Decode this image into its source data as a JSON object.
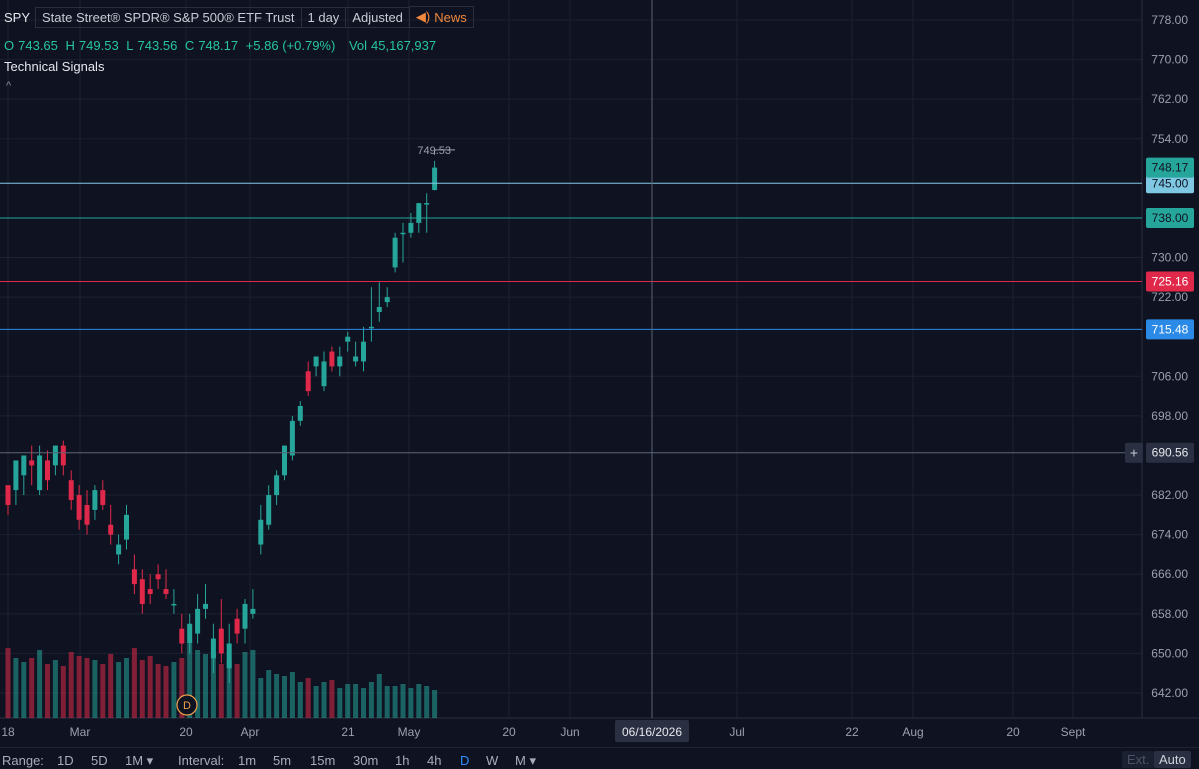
{
  "header": {
    "symbol": "SPY",
    "name": "State Street® SPDR® S&P 500® ETF Trust",
    "interval": "1 day",
    "adjusted": "Adjusted",
    "news": "News"
  },
  "ohlc": {
    "o_label": "O",
    "o": "743.65",
    "h_label": "H",
    "h": "749.53",
    "l_label": "L",
    "l": "743.56",
    "c_label": "C",
    "c": "748.17",
    "change": "+5.86 (+0.79%)",
    "vol_label": "Vol",
    "vol": "45,167,937"
  },
  "signals_label": "Technical Signals",
  "collapse_glyph": "^",
  "colors": {
    "up": "#26a69a",
    "down": "#e0294a",
    "price_line_lightblue": "#7ec8e3",
    "price_line_teal": "#26a69a",
    "price_line_red": "#e0294a",
    "price_line_blue": "#2b8ae6",
    "background": "#0f1220"
  },
  "chart_data": {
    "type": "candlestick",
    "y_range": [
      638,
      782
    ],
    "y_ticks": [
      "778.00",
      "770.00",
      "762.00",
      "754.00",
      "745.00",
      "738.00",
      "730.00",
      "722.00",
      "715.48",
      "706.00",
      "698.00",
      "690.56",
      "682.00",
      "674.00",
      "666.00",
      "658.00",
      "650.00",
      "642.00"
    ],
    "x_labels": [
      "18",
      "Mar",
      "20",
      "Apr",
      "21",
      "May",
      "20",
      "Jun",
      "06/16/2026",
      "Jul",
      "22",
      "Aug",
      "20",
      "Sept"
    ],
    "candles": [
      [
        684,
        680,
        682,
        678
      ],
      [
        683,
        689,
        686,
        680
      ],
      [
        686,
        690,
        690,
        682
      ],
      [
        689,
        688,
        692,
        684
      ],
      [
        683,
        690,
        692,
        682
      ],
      [
        689,
        685,
        691,
        683
      ],
      [
        688,
        692,
        692,
        686
      ],
      [
        692,
        688,
        693,
        686
      ],
      [
        685,
        681,
        687,
        679
      ],
      [
        682,
        677,
        684,
        675
      ],
      [
        680,
        676,
        683,
        674
      ],
      [
        679,
        683,
        684,
        677
      ],
      [
        683,
        680,
        685,
        679
      ],
      [
        676,
        674,
        680,
        672
      ],
      [
        670,
        672,
        674,
        668
      ],
      [
        673,
        678,
        680,
        671
      ],
      [
        667,
        664,
        670,
        662
      ],
      [
        665,
        660,
        667,
        658
      ],
      [
        663,
        662,
        666,
        660
      ],
      [
        666,
        665,
        668,
        663
      ],
      [
        663,
        662,
        667,
        661
      ],
      [
        660,
        660,
        663,
        658
      ],
      [
        655,
        652,
        658,
        650
      ],
      [
        652,
        656,
        658,
        650
      ],
      [
        654,
        659,
        662,
        652
      ],
      [
        659,
        660,
        664,
        657
      ],
      [
        649,
        653,
        656,
        646
      ],
      [
        655,
        650,
        661,
        648
      ],
      [
        647,
        652,
        656,
        644
      ],
      [
        657,
        654,
        659,
        652
      ],
      [
        655,
        660,
        661,
        652
      ],
      [
        658,
        659,
        663,
        657
      ],
      [
        672,
        677,
        680,
        670
      ],
      [
        676,
        682,
        684,
        675
      ],
      [
        682,
        686,
        687,
        680
      ],
      [
        686,
        692,
        692,
        685
      ],
      [
        690,
        697,
        698,
        689
      ],
      [
        697,
        700,
        701,
        696
      ],
      [
        707,
        703,
        709,
        702
      ],
      [
        708,
        710,
        710,
        706
      ],
      [
        704,
        709,
        711,
        703
      ],
      [
        711,
        708,
        712,
        707
      ],
      [
        708,
        710,
        712,
        706
      ],
      [
        713,
        714,
        715,
        711
      ],
      [
        709,
        710,
        713,
        708
      ],
      [
        709,
        713,
        716,
        707
      ],
      [
        716,
        716,
        724,
        713
      ],
      [
        719,
        720,
        725,
        717
      ],
      [
        721,
        722,
        724,
        720
      ],
      [
        728,
        734,
        735,
        727
      ],
      [
        735,
        735,
        737,
        729
      ],
      [
        735,
        737,
        739,
        734
      ],
      [
        737,
        741,
        741,
        735
      ],
      [
        741,
        741,
        743,
        735
      ],
      [
        743.65,
        748.17,
        749.53,
        743.56
      ]
    ],
    "volumes": [
      35,
      30,
      28,
      30,
      34,
      27,
      29,
      26,
      33,
      31,
      30,
      29,
      27,
      32,
      28,
      30,
      35,
      29,
      31,
      27,
      26,
      28,
      30,
      37,
      34,
      32,
      33,
      27,
      29,
      27,
      33,
      34,
      20,
      24,
      22,
      21,
      23,
      18,
      20,
      16,
      18,
      19,
      15,
      17,
      17,
      15,
      18,
      22,
      16,
      16,
      17,
      15,
      17,
      16,
      14
    ],
    "price_lines": [
      {
        "label": "745.00",
        "value": 745.0,
        "color": "#7ec8e3",
        "text": "#0f1220"
      },
      {
        "label": "738.00",
        "value": 738.0,
        "color": "#26a69a",
        "text": "#0f1220"
      },
      {
        "label": "725.16",
        "value": 725.16,
        "color": "#e0294a",
        "text": "#ffffff"
      },
      {
        "label": "715.48",
        "value": 715.48,
        "color": "#2b8ae6",
        "text": "#ffffff"
      }
    ],
    "last_price": {
      "label": "748.17",
      "value": 748.17
    },
    "crosshair": {
      "date": "06/16/2026",
      "price": "690.56",
      "value": 690.56
    },
    "high_marker": "749.53",
    "dividend_marker": "D"
  },
  "bottom": {
    "range_label": "Range:",
    "ranges": [
      "1D",
      "5D",
      "1M ▾"
    ],
    "interval_label": "Interval:",
    "intervals": [
      "1m",
      "5m",
      "15m",
      "30m",
      "1h",
      "4h",
      "D",
      "W",
      "M ▾"
    ],
    "active_interval": "D",
    "ext": "Ext.",
    "auto": "Auto"
  }
}
